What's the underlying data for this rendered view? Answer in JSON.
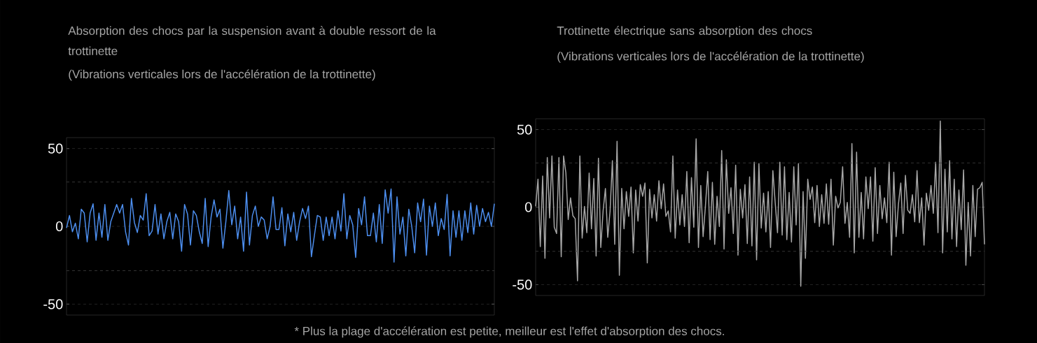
{
  "chart_data": [
    {
      "type": "line",
      "title": "Absorption des chocs par la suspension avant à double ressort de la trottinette",
      "subtitle": "(Vibrations verticales lors de l'accélération de la trottinette)",
      "annotations": [
        "* Plus la plage d'accélération est petite, meilleur est l'effet d'absorption des chocs."
      ],
      "categories": [
        null,
        null,
        null,
        null,
        null,
        null,
        null,
        null,
        null,
        null,
        null,
        null,
        null,
        null,
        null,
        null,
        null,
        null,
        null,
        null,
        null,
        null,
        null,
        null,
        null,
        null,
        null,
        null,
        null,
        null,
        null,
        null,
        null,
        null,
        null,
        null,
        null,
        null,
        null,
        null,
        null,
        null,
        null,
        null,
        null,
        null,
        null,
        null,
        null,
        null,
        null,
        null,
        null,
        null,
        null,
        null,
        null,
        null,
        null,
        null,
        null,
        null,
        null,
        null,
        null,
        null,
        null,
        null,
        null,
        null,
        null,
        null,
        null,
        null,
        null,
        null,
        null,
        null,
        null,
        null,
        null,
        null,
        null,
        null,
        null,
        null,
        null,
        null,
        null,
        null,
        null,
        null,
        null,
        null,
        null,
        null,
        null,
        null,
        null,
        null,
        null,
        null,
        null,
        null,
        null,
        null,
        null,
        null,
        null,
        null,
        null,
        null,
        null,
        null,
        null,
        null,
        null,
        null,
        null,
        null,
        null,
        null,
        null,
        null,
        null,
        null,
        null,
        null,
        null,
        null,
        null,
        null,
        null,
        null,
        null,
        null,
        null,
        null,
        null,
        null,
        null,
        null,
        null,
        null,
        null,
        null
      ],
      "series": [
        {
          "color": "#4d8ff0",
          "values": [
            -1,
            7,
            -3.5,
            2,
            -8,
            11,
            8.5,
            -10,
            8.5,
            14.5,
            -9,
            8.5,
            -7,
            14,
            -9,
            3,
            8.5,
            14,
            8.5,
            14,
            -3.5,
            -12,
            18,
            2.5,
            -4,
            7,
            4,
            21,
            -6,
            -3,
            14,
            -5,
            8,
            -8,
            3,
            9,
            -8,
            8,
            3,
            -16,
            14,
            8,
            -12,
            10,
            7,
            -3.5,
            -11,
            18,
            -13,
            6,
            17,
            6,
            11,
            -14,
            3,
            23,
            1,
            13,
            -8,
            6,
            -16,
            22,
            -12,
            7,
            13,
            0,
            6,
            4,
            -8,
            0,
            19,
            -2,
            -2,
            12,
            -12.5,
            8,
            -3.5,
            9,
            -9,
            3,
            11.5,
            5,
            13,
            -19.5,
            -6,
            7,
            6,
            -9,
            6,
            -6,
            6,
            -8,
            10,
            -3,
            21,
            -8,
            7,
            1,
            -20,
            11.5,
            1,
            19,
            -6,
            -6,
            8.5,
            -10,
            14,
            -11,
            23.5,
            8.5,
            24,
            -23,
            19,
            -5,
            6,
            -19,
            11,
            0,
            -17,
            15,
            3,
            17.5,
            -18.5,
            13,
            0,
            15,
            -6,
            5,
            -2,
            20.5,
            -19,
            10,
            -7,
            10,
            -9,
            10,
            -4,
            15,
            -5,
            13.5,
            0,
            11.5,
            3,
            9,
            0,
            14.5
          ]
        }
      ],
      "ylim": [
        -57,
        57
      ],
      "yticks": [
        -50,
        0,
        50
      ],
      "grid": "y",
      "ref_lines": [
        {
          "axis": "y",
          "value": -28.5,
          "color": "#404040",
          "line_style": "dashed"
        },
        {
          "axis": "y",
          "value": 28.5,
          "color": "#404040",
          "line_style": "dashed"
        }
      ]
    },
    {
      "type": "line",
      "title": "Trottinette électrique sans absorption des chocs",
      "subtitle": "(Vibrations verticales lors de l'accélération de la trottinette)",
      "categories": [
        null,
        null,
        null,
        null,
        null,
        null,
        null,
        null,
        null,
        null,
        null,
        null,
        null,
        null,
        null,
        null,
        null,
        null,
        null,
        null,
        null,
        null,
        null,
        null,
        null,
        null,
        null,
        null,
        null,
        null,
        null,
        null,
        null,
        null,
        null,
        null,
        null,
        null,
        null,
        null,
        null,
        null,
        null,
        null,
        null,
        null,
        null,
        null,
        null,
        null,
        null,
        null,
        null,
        null,
        null,
        null,
        null,
        null,
        null,
        null,
        null,
        null,
        null,
        null,
        null,
        null,
        null,
        null,
        null,
        null,
        null,
        null,
        null,
        null,
        null,
        null,
        null,
        null,
        null,
        null,
        null,
        null,
        null,
        null,
        null,
        null,
        null,
        null,
        null,
        null,
        null,
        null,
        null,
        null,
        null,
        null,
        null,
        null,
        null,
        null,
        null,
        null,
        null,
        null,
        null,
        null,
        null,
        null,
        null,
        null,
        null,
        null,
        null,
        null,
        null,
        null,
        null,
        null,
        null,
        null,
        null,
        null,
        null,
        null,
        null,
        null,
        null,
        null,
        null,
        null,
        null,
        null,
        null,
        null,
        null,
        null,
        null,
        null,
        null,
        null,
        null,
        null,
        null,
        null,
        null,
        null,
        null,
        null,
        null,
        null,
        null,
        null,
        null,
        null,
        null,
        null,
        null,
        null,
        null,
        null,
        null,
        null,
        null,
        null,
        null,
        null,
        null,
        null,
        null,
        null,
        null,
        null,
        null,
        null,
        null,
        null,
        null,
        null,
        null,
        null,
        null,
        null,
        null,
        null,
        null,
        null,
        null,
        null,
        null,
        null,
        null,
        null,
        null,
        null
      ],
      "series": [
        {
          "color": "#a8a8a8",
          "values": [
            0.5,
            18,
            -25.5,
            20,
            -33,
            32,
            -7,
            33,
            -13,
            -17,
            32,
            -32,
            33,
            22,
            -8,
            6,
            -5.5,
            -7.5,
            -47.5,
            33,
            -20,
            0.5,
            -16.5,
            22,
            -14,
            18.5,
            -31.5,
            31.5,
            -26,
            -2.5,
            12,
            -19.5,
            -2.5,
            30,
            -24,
            42.5,
            -44,
            12,
            -14,
            10,
            -6,
            13,
            -29.5,
            11,
            -9,
            14.5,
            7,
            15.5,
            -36,
            11.5,
            -7,
            8,
            -9,
            17,
            -1,
            15,
            -6,
            -2.5,
            -16,
            33,
            -20,
            11,
            -11.5,
            8,
            -12.5,
            23,
            -23,
            19,
            -13,
            44,
            -26,
            14,
            -19,
            0.5,
            23,
            -21,
            16,
            -24,
            7,
            -12.5,
            36.5,
            -27,
            30.5,
            -4,
            12.5,
            -17,
            27,
            -31,
            11.5,
            -7,
            14.5,
            -23.5,
            19.5,
            -25,
            29,
            -34,
            28,
            -13.5,
            9,
            -16,
            10,
            -26,
            23.5,
            3,
            -16.5,
            29,
            -18,
            26,
            -21,
            9.5,
            -22.5,
            26,
            -11.5,
            28,
            -51,
            10,
            -33,
            18,
            5,
            13,
            -10,
            14,
            -12.5,
            8,
            -10.5,
            15,
            -11,
            18,
            -24.5,
            7,
            -0.5,
            3,
            26,
            -10.5,
            3,
            -19.5,
            41,
            -29.5,
            35.5,
            -19.5,
            9.5,
            -20.5,
            19.5,
            -1,
            19.5,
            -22,
            25.5,
            -17,
            14,
            -7.5,
            6,
            -10,
            29,
            -31,
            22.5,
            -19,
            2,
            15.5,
            -17,
            20.5,
            -2,
            -4,
            8,
            -9.5,
            23.5,
            -10,
            6,
            -24.5,
            9,
            -2,
            14,
            -4,
            29,
            -16.5,
            55.5,
            -29.5,
            24.5,
            -16,
            30,
            -20.5,
            18,
            -25.5,
            11,
            -14.5,
            24,
            -37.5,
            3,
            -31.5,
            14,
            -19,
            11.5,
            12.5,
            16,
            -24
          ]
        }
      ],
      "ylim": [
        -57,
        57
      ],
      "yticks": [
        -50,
        0,
        50
      ],
      "grid": "y",
      "ref_lines": [
        {
          "axis": "y",
          "value": -28.5,
          "color": "#404040",
          "line_style": "dashed"
        },
        {
          "axis": "y",
          "value": 28.5,
          "color": "#404040",
          "line_style": "dashed"
        }
      ]
    }
  ]
}
